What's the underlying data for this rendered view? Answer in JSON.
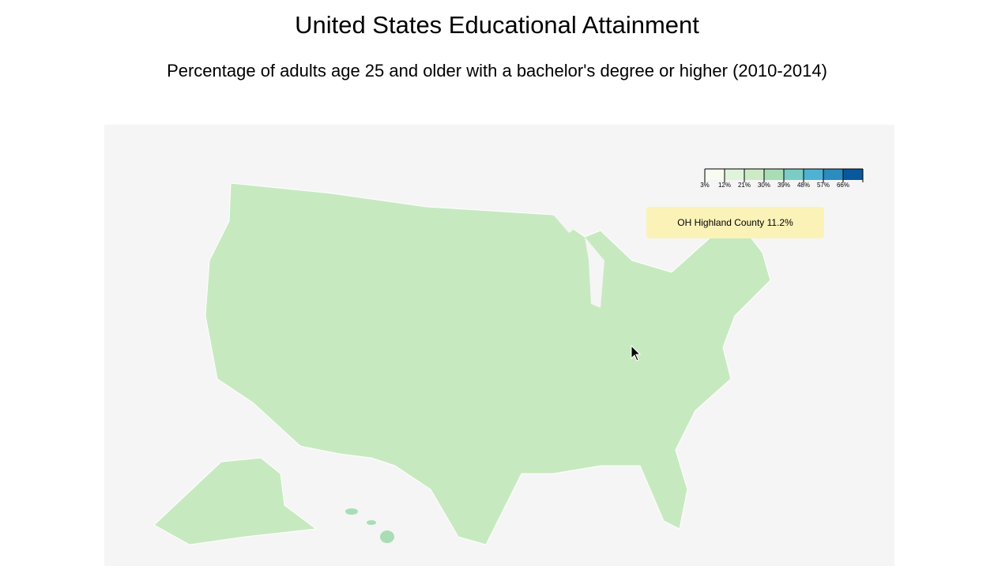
{
  "title": "United States Educational Attainment",
  "subtitle": "Percentage of adults age 25 and older with a bachelor's degree or higher (2010-2014)",
  "legend": {
    "lim": [
      3,
      75
    ],
    "ticks": [
      {
        "value": 3,
        "label": "3%"
      },
      {
        "value": 12,
        "label": "12%"
      },
      {
        "value": 21,
        "label": "21%"
      },
      {
        "value": 30,
        "label": "30%"
      },
      {
        "value": 39,
        "label": "39%"
      },
      {
        "value": 48,
        "label": "48%"
      },
      {
        "value": 57,
        "label": "57%"
      },
      {
        "value": 66,
        "label": "66%"
      }
    ],
    "colors": [
      "#f7fcf0",
      "#e0f3db",
      "#ccebc5",
      "#a8ddb5",
      "#7bccc4",
      "#4eb3d3",
      "#2b8cbe",
      "#08589e"
    ]
  },
  "tooltip": "OH Highland County 11.2%"
}
